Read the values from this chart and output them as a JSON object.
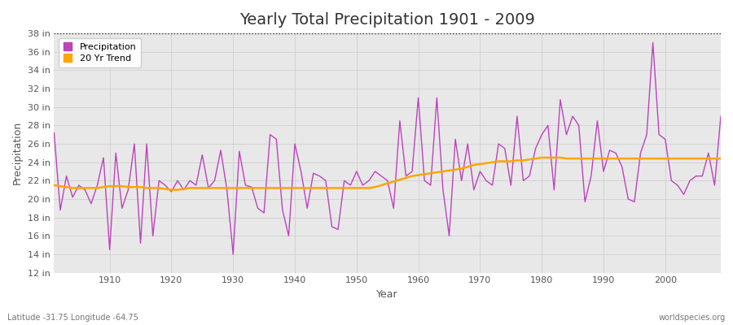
{
  "title": "Yearly Total Precipitation 1901 - 2009",
  "xlabel": "Year",
  "ylabel": "Precipitation",
  "subtitle": "Latitude -31.75 Longitude -64.75",
  "watermark": "worldspecies.org",
  "ylim": [
    12,
    38
  ],
  "ytick_labels": [
    "12 in",
    "14 in",
    "16 in",
    "18 in",
    "20 in",
    "22 in",
    "24 in",
    "26 in",
    "28 in",
    "30 in",
    "32 in",
    "34 in",
    "36 in",
    "38 in"
  ],
  "ytick_values": [
    12,
    14,
    16,
    18,
    20,
    22,
    24,
    26,
    28,
    30,
    32,
    34,
    36,
    38
  ],
  "years": [
    1901,
    1902,
    1903,
    1904,
    1905,
    1906,
    1907,
    1908,
    1909,
    1910,
    1911,
    1912,
    1913,
    1914,
    1915,
    1916,
    1917,
    1918,
    1919,
    1920,
    1921,
    1922,
    1923,
    1924,
    1925,
    1926,
    1927,
    1928,
    1929,
    1930,
    1931,
    1932,
    1933,
    1934,
    1935,
    1936,
    1937,
    1938,
    1939,
    1940,
    1941,
    1942,
    1943,
    1944,
    1945,
    1946,
    1947,
    1948,
    1949,
    1950,
    1951,
    1952,
    1953,
    1954,
    1955,
    1956,
    1957,
    1958,
    1959,
    1960,
    1961,
    1962,
    1963,
    1964,
    1965,
    1966,
    1967,
    1968,
    1969,
    1970,
    1971,
    1972,
    1973,
    1974,
    1975,
    1976,
    1977,
    1978,
    1979,
    1980,
    1981,
    1982,
    1983,
    1984,
    1985,
    1986,
    1987,
    1988,
    1989,
    1990,
    1991,
    1992,
    1993,
    1994,
    1995,
    1996,
    1997,
    1998,
    1999,
    2000,
    2001,
    2002,
    2003,
    2004,
    2005,
    2006,
    2007,
    2008,
    2009
  ],
  "precip": [
    27.2,
    18.8,
    22.5,
    20.2,
    21.5,
    21.0,
    19.5,
    21.5,
    24.5,
    14.5,
    25.0,
    19.0,
    21.0,
    26.0,
    15.2,
    26.0,
    16.0,
    22.0,
    21.5,
    20.8,
    22.0,
    21.0,
    22.0,
    21.5,
    24.8,
    21.2,
    22.0,
    25.3,
    21.0,
    14.0,
    25.2,
    21.5,
    21.3,
    19.0,
    18.5,
    27.0,
    26.5,
    18.8,
    16.0,
    26.0,
    23.0,
    19.0,
    22.8,
    22.5,
    22.0,
    17.0,
    16.7,
    22.0,
    21.5,
    23.0,
    21.5,
    22.0,
    23.0,
    22.5,
    22.0,
    19.0,
    28.5,
    22.5,
    23.0,
    31.0,
    22.0,
    21.5,
    31.0,
    21.0,
    16.0,
    26.5,
    22.0,
    26.0,
    21.0,
    23.0,
    22.0,
    21.5,
    26.0,
    25.5,
    21.5,
    29.0,
    22.0,
    22.5,
    25.5,
    27.0,
    28.0,
    21.0,
    30.8,
    27.0,
    29.0,
    28.0,
    19.7,
    22.5,
    28.5,
    23.0,
    25.3,
    25.0,
    23.5,
    20.0,
    19.7,
    25.0,
    27.0,
    37.0,
    27.0,
    26.5,
    22.0,
    21.5,
    20.5,
    22.0,
    22.5,
    22.5,
    25.0,
    21.5,
    29.0
  ],
  "trend": [
    21.5,
    21.4,
    21.3,
    21.2,
    21.2,
    21.2,
    21.2,
    21.2,
    21.3,
    21.4,
    21.4,
    21.4,
    21.3,
    21.3,
    21.3,
    21.2,
    21.2,
    21.2,
    21.1,
    21.0,
    21.0,
    21.1,
    21.2,
    21.2,
    21.2,
    21.2,
    21.2,
    21.2,
    21.2,
    21.2,
    21.2,
    21.2,
    21.2,
    21.2,
    21.2,
    21.2,
    21.2,
    21.2,
    21.2,
    21.2,
    21.2,
    21.2,
    21.2,
    21.2,
    21.2,
    21.2,
    21.2,
    21.2,
    21.2,
    21.2,
    21.2,
    21.2,
    21.3,
    21.5,
    21.7,
    21.9,
    22.1,
    22.3,
    22.5,
    22.6,
    22.7,
    22.8,
    22.9,
    23.0,
    23.1,
    23.2,
    23.3,
    23.5,
    23.7,
    23.8,
    23.9,
    24.0,
    24.1,
    24.1,
    24.1,
    24.2,
    24.2,
    24.3,
    24.4,
    24.5,
    24.5,
    24.5,
    24.5,
    24.4,
    24.4,
    24.4,
    24.4,
    24.4,
    24.4,
    24.4,
    24.4,
    24.4,
    24.4,
    24.4,
    24.4,
    24.4,
    24.4,
    24.4,
    24.4,
    24.4,
    24.4,
    24.4,
    24.4,
    24.4,
    24.4,
    24.4,
    24.4,
    24.4,
    24.4
  ],
  "precip_color": "#bb44bb",
  "trend_color": "#FFA500",
  "fig_bg_color": "#ffffff",
  "plot_bg_color": "#e8e8e8",
  "grid_color": "#d0d0d0",
  "dotted_line_y": 38,
  "legend_labels": [
    "Precipitation",
    "20 Yr Trend"
  ],
  "title_fontsize": 14,
  "axis_fontsize": 9,
  "tick_fontsize": 8
}
